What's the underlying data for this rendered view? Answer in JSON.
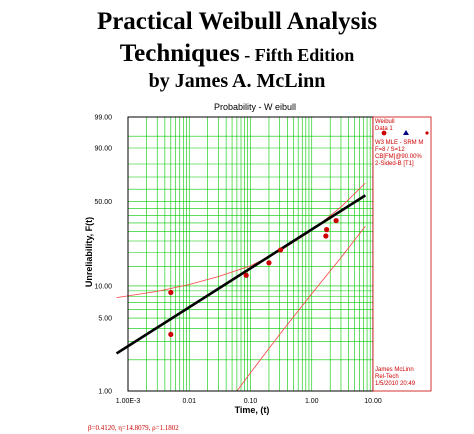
{
  "cover": {
    "title": "Practical Weibull Analysis",
    "title_line2": "Techniques",
    "edition": " - Fifth Edition",
    "author_line": "by James A. McLinn"
  },
  "chart_data": {
    "type": "scatter",
    "title": "Probability - W eibull",
    "xlabel": "Time, (t)",
    "ylabel": "Unreliability, F(t)",
    "x_scale": "log",
    "y_scale": "weibull",
    "xlim": [
      0.001,
      10.0
    ],
    "ylim": [
      1.0,
      99.0
    ],
    "x_ticks": [
      {
        "value": 0.001,
        "label": "1.00E-3"
      },
      {
        "value": 0.01,
        "label": "0.01"
      },
      {
        "value": 0.1,
        "label": "0.10"
      },
      {
        "value": 1.0,
        "label": "1.00"
      },
      {
        "value": 10.0,
        "label": "10.00"
      }
    ],
    "y_ticks": [
      {
        "value": 1.0,
        "label": "1.00"
      },
      {
        "value": 5.0,
        "label": "5.00"
      },
      {
        "value": 10.0,
        "label": "10.00"
      },
      {
        "value": 50.0,
        "label": "50.00"
      },
      {
        "value": 90.0,
        "label": "90.00"
      },
      {
        "value": 99.0,
        "label": "99.00"
      }
    ],
    "grid": true,
    "points": [
      {
        "x": 0.005,
        "y": 3.5
      },
      {
        "x": 0.005,
        "y": 8.7
      },
      {
        "x": 0.085,
        "y": 12.5
      },
      {
        "x": 0.2,
        "y": 16.2
      },
      {
        "x": 0.31,
        "y": 21.0
      },
      {
        "x": 1.7,
        "y": 27.5
      },
      {
        "x": 1.75,
        "y": 31.0
      },
      {
        "x": 2.5,
        "y": 36.5
      }
    ],
    "fit_line": [
      {
        "x": 0.00065,
        "y": 2.3
      },
      {
        "x": 7.5,
        "y": 55.0
      }
    ],
    "confidence_upper": [
      {
        "x": 0.00065,
        "y": 7.8
      },
      {
        "x": 0.003,
        "y": 8.9
      },
      {
        "x": 0.01,
        "y": 10.3
      },
      {
        "x": 0.03,
        "y": 12.2
      },
      {
        "x": 0.1,
        "y": 15.2
      },
      {
        "x": 0.3,
        "y": 20.5
      },
      {
        "x": 1.0,
        "y": 30.5
      },
      {
        "x": 3.0,
        "y": 46.0
      },
      {
        "x": 7.5,
        "y": 65.0
      }
    ],
    "confidence_lower": [
      {
        "x": 0.06,
        "y": 1.0
      },
      {
        "x": 0.1,
        "y": 1.5
      },
      {
        "x": 0.3,
        "y": 3.5
      },
      {
        "x": 1.0,
        "y": 8.5
      },
      {
        "x": 3.0,
        "y": 18.0
      },
      {
        "x": 7.5,
        "y": 33.0
      }
    ],
    "legend": {
      "lines": [
        "Weibull",
        "Data 1",
        "W3 MLE - SRM M",
        "F=8 / S=12",
        "CB[FM]@90.00%",
        "2-Sided-B [T1]"
      ]
    },
    "stamp": [
      "James McLinn",
      "Rel-Tech",
      "1/5/2010 20:49"
    ],
    "footer": "β=0.4120, η=14.8079, ρ=1.1802",
    "colors": {
      "grid": "#00c800",
      "points": "#cc0000",
      "fit": "#000000",
      "bounds": "#ff4040",
      "panel_text": "#cc0000"
    }
  }
}
